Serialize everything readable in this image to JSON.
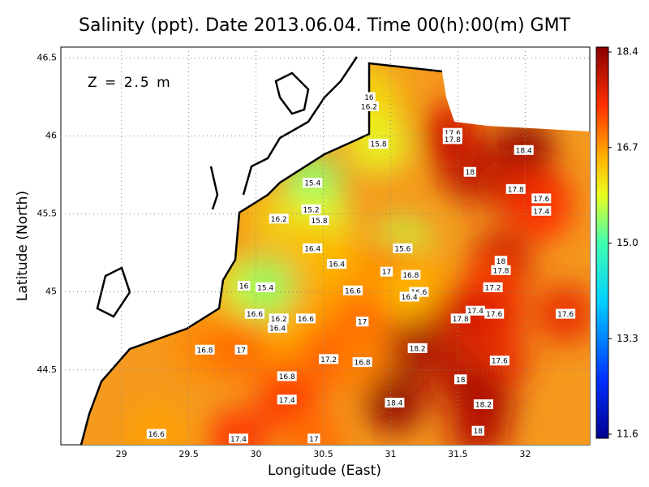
{
  "chart_data": {
    "type": "contour",
    "title": "Salinity (ppt). Date 2013.06.04. Time 00(h):00(m) GMT",
    "annotation": "Z = 2.5 m",
    "x_label": "Longitude (East)",
    "y_label": "Latitude (North)",
    "xlim": [
      28.55,
      32.48
    ],
    "ylim": [
      44.02,
      46.57
    ],
    "xticks": [
      29,
      29.5,
      30,
      30.5,
      31,
      31.5,
      32
    ],
    "yticks": [
      44.5,
      45,
      45.5,
      46,
      46.5
    ],
    "grid": true,
    "colorbar": {
      "lim": [
        11.6,
        18.4
      ],
      "ticks": [
        11.6,
        13.3,
        {
          "value": 15,
          "label": "15.0"
        },
        16.7,
        18.4
      ]
    },
    "contour_labels": {
      "x": [
        30.84,
        30.84,
        30.91,
        31.46,
        31.46,
        31.99,
        31.59,
        30.42,
        30.41,
        30.17,
        30.47,
        30.42,
        30.6,
        31.09,
        31.93,
        32.12,
        32.12,
        31.82,
        31.82,
        30.97,
        31.15,
        31.76,
        30.72,
        31.21,
        31.14,
        31.63,
        31.77,
        31.52,
        29.99,
        30.17,
        30.16,
        30.37,
        30.79,
        32.3,
        29.62,
        29.89,
        30.54,
        30.79,
        31.2,
        31.81,
        30.23,
        31.52,
        30.23,
        31.03,
        31.69,
        29.26,
        29.87,
        30.43,
        31.65,
        29.91,
        30.07
      ],
      "y": [
        46.25,
        46.19,
        45.95,
        46.02,
        45.98,
        45.91,
        45.77,
        45.7,
        45.53,
        45.47,
        45.46,
        45.28,
        45.18,
        45.28,
        45.66,
        45.6,
        45.52,
        45.2,
        45.14,
        45.13,
        45.11,
        45.03,
        45.01,
        45.0,
        44.97,
        44.88,
        44.86,
        44.83,
        44.86,
        44.83,
        44.77,
        44.83,
        44.81,
        44.86,
        44.63,
        44.63,
        44.57,
        44.55,
        44.64,
        44.56,
        44.46,
        44.44,
        44.31,
        44.29,
        44.28,
        44.09,
        44.06,
        44.06,
        44.11,
        45.04,
        45.03
      ],
      "values": [
        16,
        16.2,
        15.8,
        17.6,
        17.8,
        18.4,
        18,
        15.4,
        15.2,
        16.2,
        15.8,
        16.4,
        16.4,
        15.6,
        17.8,
        17.6,
        17.4,
        18,
        17.8,
        17,
        16.8,
        17.2,
        16.6,
        16.6,
        16.4,
        17.4,
        17.6,
        17.8,
        16.6,
        16.2,
        16.4,
        16.6,
        17,
        17.6,
        16.8,
        17,
        17.2,
        16.8,
        18.2,
        17.6,
        16.8,
        18,
        17.4,
        18.4,
        18.2,
        16.6,
        17.4,
        17,
        18,
        16,
        15.4
      ]
    }
  }
}
